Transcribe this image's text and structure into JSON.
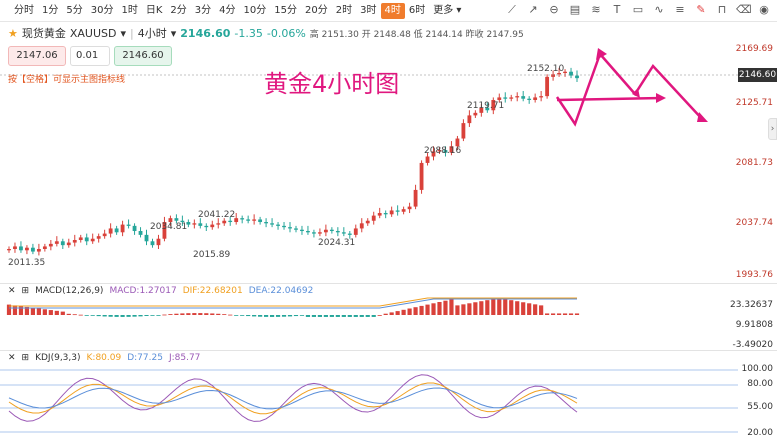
{
  "toolbar": {
    "intervals": [
      "分时",
      "1分",
      "5分",
      "30分",
      "1时",
      "日K",
      "2分",
      "3分",
      "4分",
      "10分",
      "15分",
      "20分",
      "2时",
      "3时",
      "4时",
      "6时",
      "更多"
    ],
    "active_interval": "4时"
  },
  "symbol": {
    "name": "现货黄金",
    "code": "XAUUSD",
    "period": "4小时",
    "price": "2146.60",
    "change": "-1.35",
    "change_pct": "-0.06%",
    "ohlc": "高 2151.30  开 2148.48  低 2144.14  昨收 2147.95"
  },
  "order": {
    "sell": "2147.06",
    "qty": "0.01",
    "buy": "2146.60"
  },
  "hint": "按【空格】可显示主图指标线",
  "annotation": "黄金4小时图",
  "price_axis": [
    "2169.69",
    "2146.60",
    "2125.71",
    "2081.73",
    "2037.74",
    "1993.76"
  ],
  "price_tags": [
    "2011.35",
    "2034.81",
    "2015.89",
    "2041.22",
    "2024.31",
    "2088.16",
    "2119.71",
    "2152.10"
  ],
  "macd": {
    "label": "MACD(12,26,9)",
    "macd": "MACD:1.27017",
    "dif": "DIF:22.68201",
    "dea": "DEA:22.04692",
    "axis": [
      "23.32637",
      "9.91808",
      "-3.49020"
    ]
  },
  "kdj": {
    "label": "KDJ(9,3,3)",
    "k": "K:80.09",
    "d": "D:77.25",
    "j": "J:85.77",
    "axis": [
      "100.00",
      "80.00",
      "55.00",
      "20.00"
    ]
  },
  "colors": {
    "up": "#d9413a",
    "down": "#26a69a",
    "annot": "#e0177f"
  }
}
